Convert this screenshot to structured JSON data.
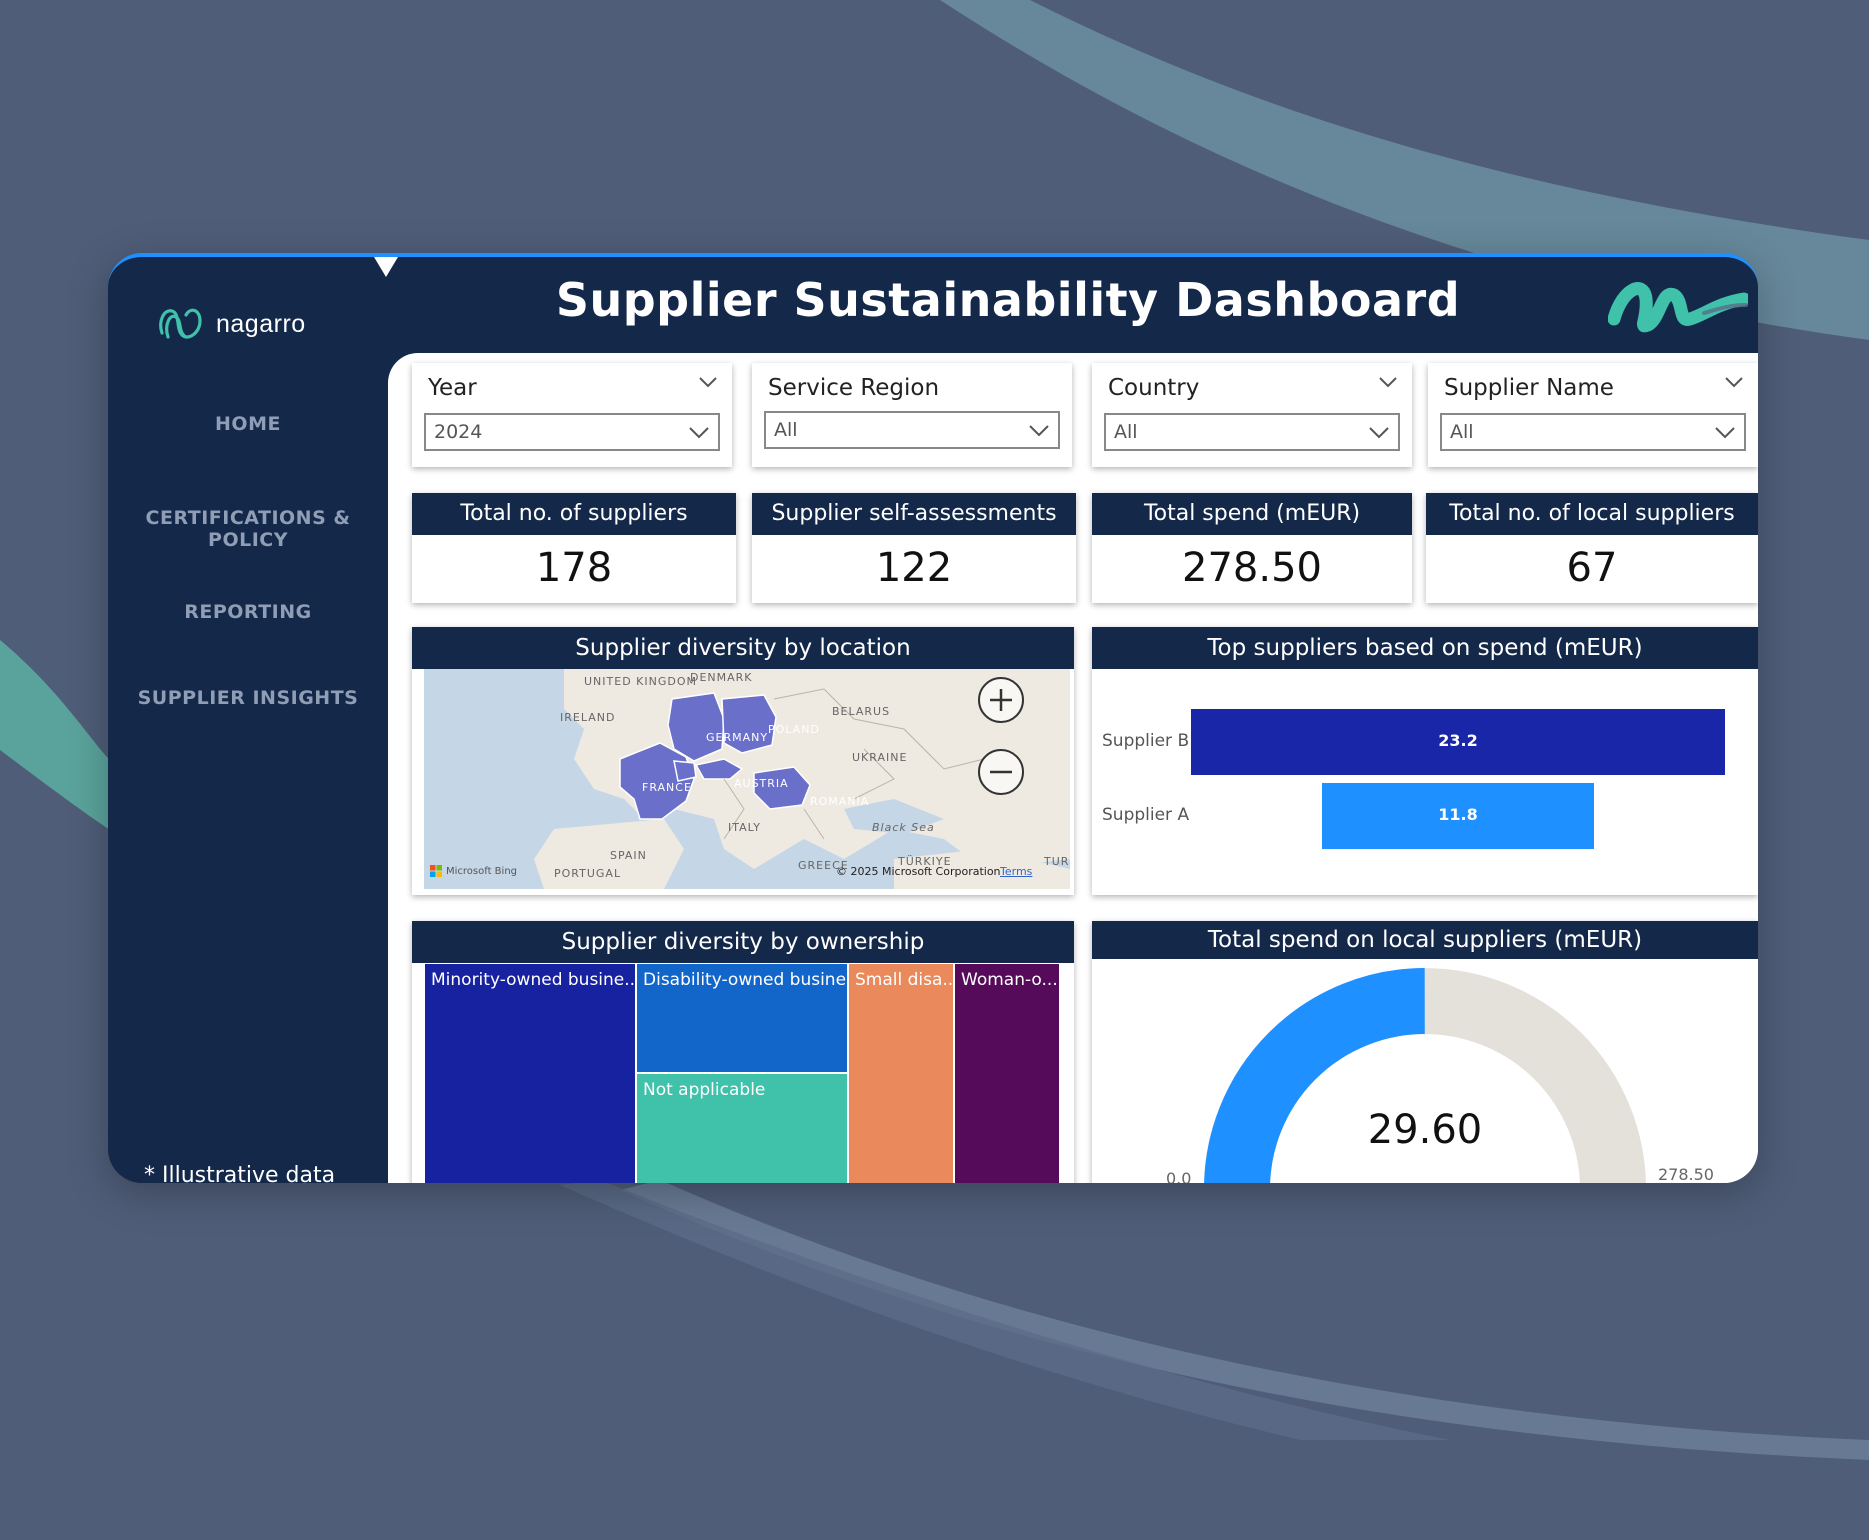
{
  "colors": {
    "background": "#4f5d78",
    "navy": "#14284a",
    "accent_blue": "#1e90ff",
    "teal": "#3fc1aa"
  },
  "app": {
    "logo_text": "nagarro",
    "title": "Supplier Sustainability Dashboard",
    "footnote": "* Illustrative data"
  },
  "sidebar": {
    "items": [
      {
        "label": "HOME"
      },
      {
        "label": "CERTIFICATIONS & POLICY"
      },
      {
        "label": "REPORTING"
      },
      {
        "label": "SUPPLIER INSIGHTS"
      }
    ]
  },
  "filters": [
    {
      "label": "Year",
      "value": "2024"
    },
    {
      "label": "Service Region",
      "value": "All"
    },
    {
      "label": "Country",
      "value": "All"
    },
    {
      "label": "Supplier Name",
      "value": "All"
    }
  ],
  "kpis": [
    {
      "label": "Total no. of suppliers",
      "value": "178"
    },
    {
      "label": "Supplier self-assessments",
      "value": "122"
    },
    {
      "label": "Total spend (mEUR)",
      "value": "278.50"
    },
    {
      "label": "Total no. of local suppliers",
      "value": "67"
    }
  ],
  "map": {
    "title": "Supplier diversity by location",
    "labels": [
      "UNITED KINGDOM",
      "DENMARK",
      "IRELAND",
      "BELARUS",
      "POLAND",
      "GERMANY",
      "UKRAINE",
      "FRANCE",
      "AUSTRIA",
      "ROMANIA",
      "Black Sea",
      "ITALY",
      "SPAIN",
      "PORTUGAL",
      "GREECE",
      "TÜRKIYE",
      "TUR"
    ],
    "provider": "Microsoft Bing",
    "copyright": "© 2025 Microsoft Corporation",
    "terms": "Terms",
    "highlight_color": "#6a6fc9"
  },
  "top_suppliers": {
    "chart_data": {
      "type": "bar",
      "title": "Top suppliers based on spend (mEUR)",
      "orientation": "horizontal",
      "categories": [
        "Supplier B",
        "Supplier A"
      ],
      "values": [
        23.2,
        11.8
      ],
      "value_labels": [
        "23.2",
        "11.8"
      ],
      "colors": [
        "#1a26a8",
        "#1e90ff"
      ]
    }
  },
  "ownership": {
    "title": "Supplier diversity by ownership",
    "cells": [
      {
        "label": "Minority-owned busine...",
        "color": "#1722a0"
      },
      {
        "label": "Disability-owned busine...",
        "color": "#1266c9"
      },
      {
        "label": "Not applicable",
        "color": "#3fc1aa"
      },
      {
        "label": "Small disa...",
        "color": "#ea8a5c"
      },
      {
        "label": "Woman-o...",
        "color": "#560a5a"
      }
    ]
  },
  "local_spend": {
    "chart_data": {
      "type": "gauge",
      "title": "Total spend on local suppliers (mEUR)",
      "value": 29.6,
      "value_label": "29.60",
      "min": 0.0,
      "max": 278.5,
      "min_label": "0.0",
      "max_label": "278.50",
      "fill_color": "#1e90ff",
      "track_color": "#e4e0da"
    }
  }
}
